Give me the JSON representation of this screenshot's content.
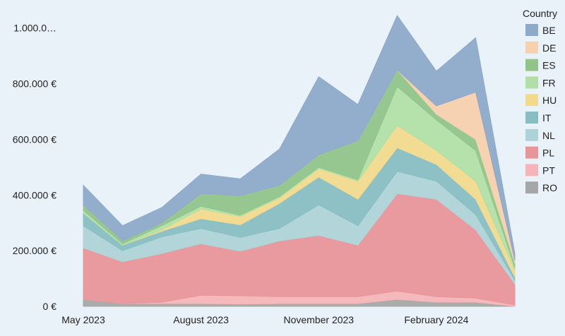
{
  "chart_data": {
    "type": "area",
    "stacked": true,
    "title": "",
    "xlabel": "",
    "ylabel": "",
    "ylim": [
      0,
      1050000
    ],
    "y_ticks": [
      0,
      200000,
      400000,
      600000,
      800000,
      1000000
    ],
    "y_tick_labels": [
      "0 €",
      "200.000 €",
      "400.000 €",
      "600.000 €",
      "800.000 €",
      "1.000.0…"
    ],
    "x": [
      "2023-05",
      "2023-06",
      "2023-07",
      "2023-08",
      "2023-09",
      "2023-10",
      "2023-11",
      "2023-12",
      "2024-01",
      "2024-02",
      "2024-03",
      "2024-04"
    ],
    "x_tick_labels": [
      {
        "label": "May 2023",
        "index": 0
      },
      {
        "label": "August 2023",
        "index": 3
      },
      {
        "label": "November 2023",
        "index": 6
      },
      {
        "label": "February 2024",
        "index": 9
      }
    ],
    "legend_title": "Country",
    "legend_position": "right",
    "series": [
      {
        "name": "RO",
        "color": "#a6a6a6",
        "values": [
          25000,
          10000,
          10000,
          10000,
          8000,
          10000,
          10000,
          10000,
          25000,
          15000,
          15000,
          0
        ]
      },
      {
        "name": "PT",
        "color": "#f5b5b8",
        "values": [
          0,
          0,
          5000,
          30000,
          30000,
          25000,
          25000,
          25000,
          30000,
          20000,
          15000,
          5000
        ]
      },
      {
        "name": "PL",
        "color": "#e8959a",
        "values": [
          185000,
          150000,
          175000,
          185000,
          160000,
          200000,
          220000,
          185000,
          350000,
          350000,
          245000,
          75000
        ]
      },
      {
        "name": "NL",
        "color": "#aed3d6",
        "values": [
          80000,
          40000,
          60000,
          55000,
          50000,
          45000,
          110000,
          70000,
          80000,
          65000,
          55000,
          15000
        ]
      },
      {
        "name": "IT",
        "color": "#88bec3",
        "values": [
          45000,
          20000,
          20000,
          35000,
          45000,
          90000,
          100000,
          95000,
          85000,
          60000,
          55000,
          10000
        ]
      },
      {
        "name": "HU",
        "color": "#f2d98c",
        "values": [
          0,
          0,
          5000,
          35000,
          30000,
          20000,
          30000,
          65000,
          80000,
          50000,
          65000,
          25000
        ]
      },
      {
        "name": "FR",
        "color": "#b2dfa6",
        "values": [
          10000,
          5000,
          15000,
          10000,
          5000,
          5000,
          5000,
          5000,
          140000,
          110000,
          110000,
          10000
        ]
      },
      {
        "name": "ES",
        "color": "#92c48a",
        "values": [
          20000,
          10000,
          10000,
          45000,
          70000,
          40000,
          45000,
          140000,
          60000,
          20000,
          40000,
          15000
        ]
      },
      {
        "name": "DE",
        "color": "#f7d0ae",
        "values": [
          0,
          0,
          0,
          0,
          0,
          0,
          0,
          0,
          0,
          30000,
          170000,
          10000
        ]
      },
      {
        "name": "BE",
        "color": "#8eaac9",
        "values": [
          70000,
          55000,
          55000,
          70000,
          60000,
          130000,
          280000,
          130000,
          195000,
          125000,
          195000,
          25000
        ]
      }
    ]
  }
}
